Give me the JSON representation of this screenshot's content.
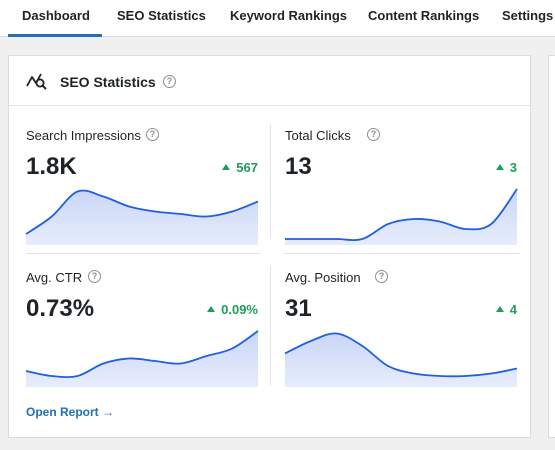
{
  "tabs": [
    {
      "label": "Dashboard",
      "active": true
    },
    {
      "label": "SEO Statistics"
    },
    {
      "label": "Keyword Rankings"
    },
    {
      "label": "Content Rankings"
    },
    {
      "label": "Settings"
    }
  ],
  "panel": {
    "title": "SEO Statistics",
    "help": "?",
    "open_report": "Open Report →"
  },
  "metrics": [
    {
      "label": "Search Impressions",
      "value": "1.8K",
      "change": "567",
      "trend": "up",
      "spark": [
        0.1,
        0.45,
        0.95,
        0.85,
        0.65,
        0.55,
        0.5,
        0.45,
        0.55,
        0.75
      ]
    },
    {
      "label": "Total Clicks",
      "value": "13",
      "change": "3",
      "trend": "up",
      "spark": [
        0.0,
        0.0,
        0.0,
        0.0,
        0.3,
        0.4,
        0.35,
        0.2,
        0.3,
        1.0
      ]
    },
    {
      "label": "Avg. CTR",
      "value": "0.73%",
      "change": "0.09%",
      "trend": "up",
      "spark": [
        0.2,
        0.1,
        0.1,
        0.35,
        0.45,
        0.4,
        0.35,
        0.5,
        0.65,
        1.0
      ]
    },
    {
      "label": "Avg. Position",
      "value": "31",
      "change": "4",
      "trend": "up",
      "spark": [
        0.55,
        0.8,
        0.95,
        0.7,
        0.3,
        0.15,
        0.1,
        0.1,
        0.15,
        0.25
      ]
    }
  ],
  "colors": {
    "accent": "#2271b1",
    "positive": "#1e9e5a",
    "line": "#1f5fe0",
    "fill": "#c9d6f7"
  }
}
